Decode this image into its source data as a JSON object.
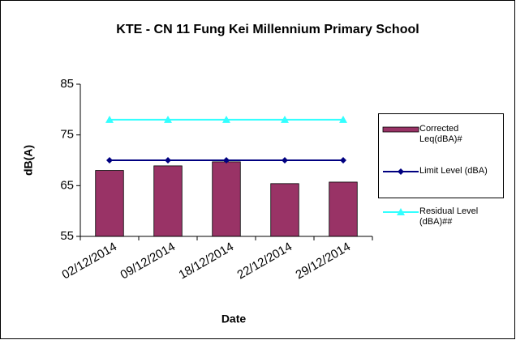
{
  "chart_data": {
    "type": "bar",
    "title": "KTE - CN 11 Fung Kei Millennium Primary School",
    "x_label": "Date",
    "y_label": "dB(A)",
    "categories": [
      "02/12/2014",
      "09/12/2014",
      "18/12/2014",
      "22/12/2014",
      "29/12/2014"
    ],
    "series": [
      {
        "name": "Corrected Leq(dBA)#",
        "type": "bar",
        "color": "#993366",
        "values": [
          68,
          68.9,
          69.7,
          65.4,
          65.7
        ]
      },
      {
        "name": "Limit Level (dBA)",
        "type": "line",
        "marker": "diamond",
        "color": "#000080",
        "values": [
          70,
          70,
          70,
          70,
          70
        ]
      },
      {
        "name": "Residual Level (dBA)##",
        "type": "line",
        "marker": "triangle",
        "color": "#33FFFF",
        "values": [
          78,
          78,
          78,
          78,
          78
        ]
      }
    ],
    "ylim": [
      55,
      85
    ],
    "yticks": [
      55,
      65,
      75,
      85
    ],
    "grid": false,
    "legend": "right"
  }
}
